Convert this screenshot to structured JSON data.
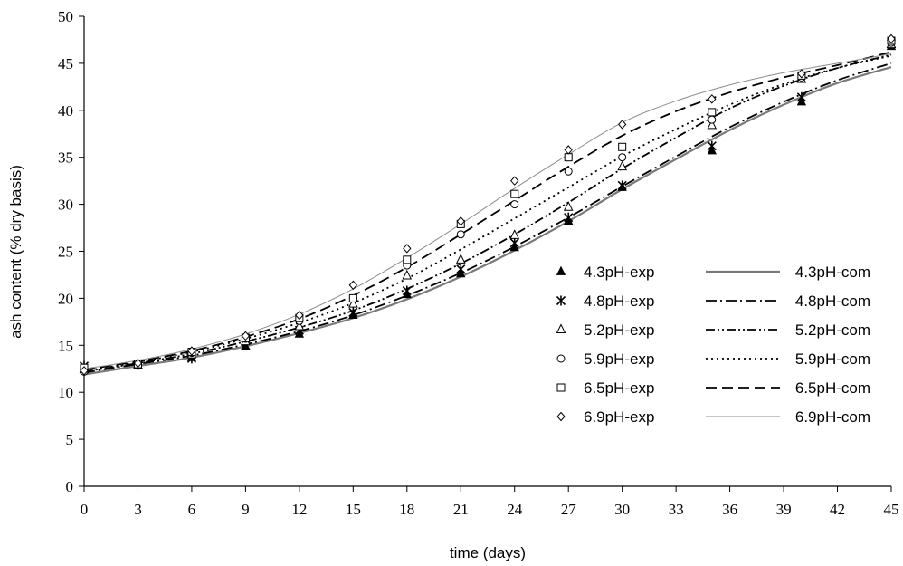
{
  "chart_data": {
    "type": "scatter",
    "xlabel": "time (days)",
    "ylabel": "ash content (% dry basis)",
    "xlim": [
      0,
      45
    ],
    "ylim": [
      0,
      50
    ],
    "x_ticks": [
      "0",
      "3",
      "6",
      "9",
      "12",
      "15",
      "18",
      "21",
      "24",
      "27",
      "30",
      "33",
      "36",
      "39",
      "42",
      "45"
    ],
    "y_ticks": [
      "0",
      "5",
      "10",
      "15",
      "20",
      "25",
      "30",
      "35",
      "40",
      "45",
      "50"
    ],
    "legend_position": "right-center",
    "grid": false,
    "series": [
      {
        "name": "4.3pH-exp",
        "kind": "markers",
        "marker": "filled-triangle",
        "x": [
          0,
          3,
          6,
          9,
          12,
          15,
          18,
          21,
          24,
          27,
          30,
          35,
          40,
          45
        ],
        "y": [
          12.5,
          12.8,
          13.7,
          14.9,
          16.2,
          18.2,
          20.4,
          22.6,
          25.4,
          28.2,
          31.8,
          35.7,
          40.9,
          46.8
        ]
      },
      {
        "name": "4.8pH-exp",
        "kind": "markers",
        "marker": "asterisk",
        "x": [
          0,
          3,
          6,
          9,
          12,
          15,
          18,
          21,
          24,
          27,
          30,
          35,
          40,
          45
        ],
        "y": [
          12.8,
          12.9,
          13.6,
          15.0,
          16.6,
          18.5,
          20.8,
          23.1,
          25.9,
          28.6,
          32.0,
          36.2,
          41.4,
          47.1
        ]
      },
      {
        "name": "5.2pH-exp",
        "kind": "markers",
        "marker": "open-triangle",
        "x": [
          0,
          3,
          6,
          9,
          12,
          15,
          18,
          21,
          24,
          27,
          30,
          35,
          40,
          45
        ],
        "y": [
          12.4,
          12.9,
          14.0,
          15.4,
          17.0,
          19.4,
          22.4,
          24.1,
          26.7,
          29.7,
          34.0,
          38.4,
          43.3,
          47.0
        ]
      },
      {
        "name": "5.9pH-exp",
        "kind": "markers",
        "marker": "open-circle",
        "x": [
          0,
          3,
          6,
          9,
          12,
          15,
          18,
          21,
          24,
          27,
          30,
          35,
          40,
          45
        ],
        "y": [
          12.2,
          13.0,
          14.2,
          15.7,
          17.6,
          20.0,
          23.5,
          26.8,
          30.0,
          33.5,
          35.0,
          39.0,
          43.5,
          47.2
        ]
      },
      {
        "name": "6.5pH-exp",
        "kind": "markers",
        "marker": "open-square",
        "x": [
          0,
          3,
          6,
          9,
          12,
          15,
          18,
          21,
          24,
          27,
          30,
          35,
          40,
          45
        ],
        "y": [
          12.6,
          13.0,
          14.3,
          15.8,
          17.9,
          20.0,
          24.1,
          27.9,
          31.1,
          35.0,
          36.1,
          39.8,
          43.7,
          47.4
        ]
      },
      {
        "name": "6.9pH-exp",
        "kind": "markers",
        "marker": "open-diamond",
        "x": [
          0,
          3,
          6,
          9,
          12,
          15,
          18,
          21,
          24,
          27,
          30,
          35,
          40,
          45
        ],
        "y": [
          12.3,
          13.1,
          14.4,
          16.0,
          18.2,
          21.4,
          25.3,
          28.2,
          32.5,
          35.8,
          38.5,
          41.2,
          43.9,
          47.6
        ]
      },
      {
        "name": "4.3pH-com",
        "kind": "line",
        "dash": "solid-gray",
        "x": [
          0,
          3,
          6,
          9,
          12,
          15,
          18,
          21,
          24,
          27,
          30,
          33,
          36,
          39,
          42,
          45
        ],
        "y": [
          11.9,
          12.8,
          13.7,
          14.9,
          16.3,
          17.9,
          19.9,
          22.3,
          25.1,
          28.2,
          31.6,
          34.8,
          37.9,
          40.6,
          42.9,
          44.6
        ]
      },
      {
        "name": "4.8pH-com",
        "kind": "line",
        "dash": "dash-dot",
        "x": [
          0,
          3,
          6,
          9,
          12,
          15,
          18,
          21,
          24,
          27,
          30,
          33,
          36,
          39,
          42,
          45
        ],
        "y": [
          12.1,
          13.0,
          13.9,
          15.1,
          16.5,
          18.2,
          20.3,
          22.7,
          25.5,
          28.6,
          31.9,
          35.1,
          38.2,
          40.9,
          43.2,
          45.0
        ]
      },
      {
        "name": "5.2pH-com",
        "kind": "line",
        "dash": "dash-dot-dot",
        "x": [
          0,
          3,
          6,
          9,
          12,
          15,
          18,
          21,
          24,
          27,
          30,
          33,
          36,
          39,
          42,
          45
        ],
        "y": [
          12.2,
          13.1,
          14.1,
          15.4,
          16.9,
          18.7,
          21.0,
          23.7,
          26.8,
          30.2,
          33.8,
          37.1,
          40.2,
          42.6,
          44.5,
          45.9
        ]
      },
      {
        "name": "5.9pH-com",
        "kind": "line",
        "dash": "dotted",
        "x": [
          0,
          3,
          6,
          9,
          12,
          15,
          18,
          21,
          24,
          27,
          30,
          33,
          36,
          39,
          42,
          45
        ],
        "y": [
          12.3,
          13.2,
          14.3,
          15.7,
          17.4,
          19.5,
          22.1,
          25.2,
          28.5,
          31.8,
          35.1,
          38.0,
          40.6,
          42.8,
          44.5,
          45.8
        ]
      },
      {
        "name": "6.5pH-com",
        "kind": "line",
        "dash": "long-dash",
        "x": [
          0,
          3,
          6,
          9,
          12,
          15,
          18,
          21,
          24,
          27,
          30,
          33,
          36,
          39,
          42,
          45
        ],
        "y": [
          12.4,
          13.3,
          14.4,
          15.9,
          17.8,
          20.3,
          23.3,
          26.8,
          30.4,
          34.0,
          37.3,
          39.9,
          41.9,
          43.5,
          44.8,
          46.2
        ]
      },
      {
        "name": "6.9pH-com",
        "kind": "line",
        "dash": "thin-solid",
        "x": [
          0,
          3,
          6,
          9,
          12,
          15,
          18,
          21,
          24,
          27,
          30,
          33,
          36,
          39,
          42,
          45
        ],
        "y": [
          12.5,
          13.4,
          14.6,
          16.2,
          18.3,
          21.0,
          24.3,
          27.9,
          31.7,
          35.3,
          38.7,
          41.0,
          42.7,
          44.0,
          45.0,
          46.0
        ]
      }
    ],
    "legend": {
      "markers": [
        "4.3pH-exp",
        "4.8pH-exp",
        "5.2pH-exp",
        "5.9pH-exp",
        "6.5pH-exp",
        "6.9pH-exp"
      ],
      "lines": [
        "4.3pH-com",
        "4.8pH-com",
        "5.2pH-com",
        "5.9pH-com",
        "6.5pH-com",
        "6.9pH-com"
      ]
    }
  }
}
